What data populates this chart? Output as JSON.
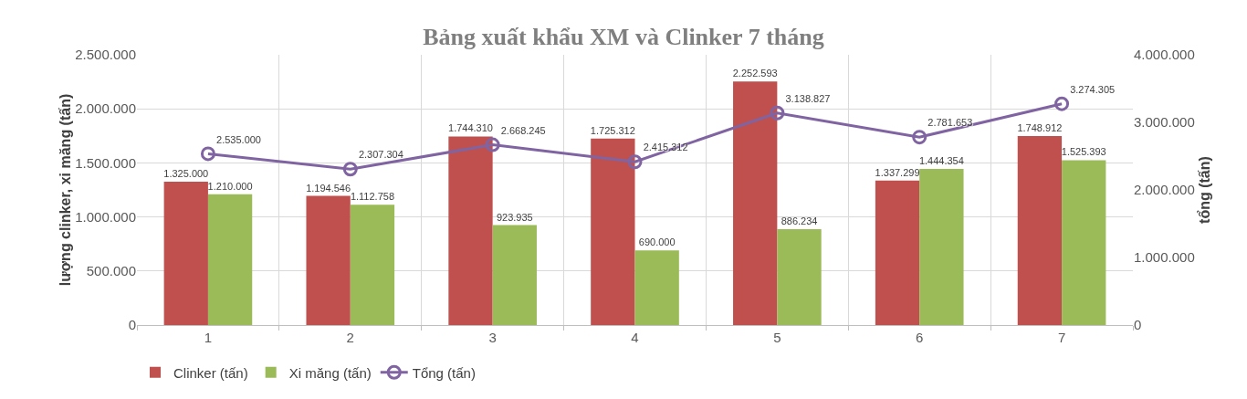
{
  "chart_data": {
    "type": "bar",
    "title": "Bảng xuất khẩu XM và Clinker 7 tháng",
    "ylabel": "lượng clinker, xi măng (tấn)",
    "y2label": "tổng (tấn)",
    "categories": [
      "1",
      "2",
      "3",
      "4",
      "5",
      "6",
      "7"
    ],
    "series": [
      {
        "name": "Clinker (tấn)",
        "color": "#c0504d",
        "values": [
          1325000,
          1194546,
          1744310,
          1725312,
          2252593,
          1337299,
          1748912
        ],
        "value_labels": [
          "1.325.000",
          "1.194.546",
          "1.744.310",
          "1.725.312",
          "2.252.593",
          "1.337.299",
          "1.748.912"
        ]
      },
      {
        "name": "Xi măng (tấn)",
        "color": "#9bbb59",
        "values": [
          1210000,
          1112758,
          923935,
          690000,
          886234,
          1444354,
          1525393
        ],
        "value_labels": [
          "1.210.000",
          "1.112.758",
          "923.935",
          "690.000",
          "886.234",
          "1.444.354",
          "1.525.393"
        ]
      },
      {
        "name": "Tổng (tấn)",
        "type": "line",
        "axis": "y2",
        "color": "#8064a2",
        "values": [
          2535000,
          2307304,
          2668245,
          2415312,
          3138827,
          2781653,
          3274305
        ],
        "value_labels": [
          "2.535.000",
          "2.307.304",
          "2.668.245",
          "2.415.312",
          "3.138.827",
          "2.781.653",
          "3.274.305"
        ]
      }
    ],
    "ylim": [
      0,
      2500000
    ],
    "yticks": [
      {
        "value": 0,
        "label": "0"
      },
      {
        "value": 500000,
        "label": "500.000"
      },
      {
        "value": 1000000,
        "label": "1.000.000"
      },
      {
        "value": 1500000,
        "label": "1.500.000"
      },
      {
        "value": 2000000,
        "label": "2.000.000"
      },
      {
        "value": 2500000,
        "label": "2.500.000"
      }
    ],
    "y2lim": [
      0,
      4000000
    ],
    "y2ticks": [
      {
        "value": 0,
        "label": "0"
      },
      {
        "value": 1000000,
        "label": "1.000.000"
      },
      {
        "value": 2000000,
        "label": "2.000.000"
      },
      {
        "value": 3000000,
        "label": "3.000.000"
      },
      {
        "value": 4000000,
        "label": "4.000.000"
      }
    ],
    "grid": true,
    "legend": "bottom left",
    "marker": "circle",
    "line_style": "solid"
  }
}
